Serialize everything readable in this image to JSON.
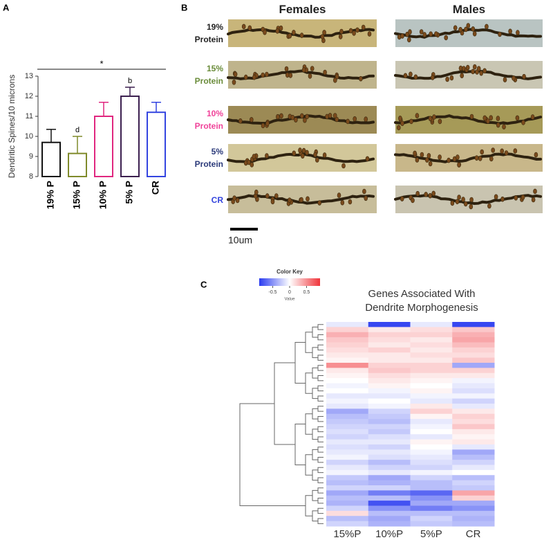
{
  "panel_labels": [
    "A",
    "B",
    "C"
  ],
  "chart_data": [
    {
      "type": "bar",
      "ylabel": "Dendritic Spines/10 microns",
      "categories": [
        "19% P",
        "15% P",
        "10% P",
        "5% P",
        "CR"
      ],
      "values": [
        9.7,
        9.15,
        11.0,
        12.0,
        11.2
      ],
      "errors": [
        0.65,
        0.85,
        0.7,
        0.45,
        0.5
      ],
      "colors": [
        "#111111",
        "#7f8a2a",
        "#e0267f",
        "#3b1f4f",
        "#3344e0"
      ],
      "ylim": [
        8,
        13
      ],
      "yticks": [
        8,
        9,
        10,
        11,
        12,
        13
      ],
      "annotations": [
        {
          "text": "d",
          "category": "15% P"
        },
        {
          "text": "b",
          "category": "5% P"
        }
      ],
      "significance": {
        "text": "*",
        "from": "19% P",
        "to": "CR"
      }
    },
    {
      "type": "heatmap",
      "title": "Genes Associated With Dendrite Morphogenesis",
      "columns": [
        "15%P",
        "10%P",
        "5%P",
        "CR"
      ],
      "values": [
        [
          -0.1,
          -0.85,
          -0.1,
          -0.85
        ],
        [
          0.2,
          0.1,
          0.15,
          0.25
        ],
        [
          0.35,
          0.2,
          0.2,
          0.35
        ],
        [
          0.25,
          0.15,
          0.1,
          0.4
        ],
        [
          0.2,
          0.1,
          0.15,
          0.3
        ],
        [
          0.15,
          0.2,
          0.1,
          0.2
        ],
        [
          0.1,
          0.1,
          0.15,
          0.15
        ],
        [
          0.05,
          0.1,
          0.1,
          0.25
        ],
        [
          0.5,
          0.2,
          0.2,
          -0.4
        ],
        [
          0.1,
          0.25,
          0.2,
          0.2
        ],
        [
          0.05,
          0.15,
          0.1,
          0.1
        ],
        [
          0.0,
          0.1,
          0.05,
          -0.05
        ],
        [
          -0.05,
          0.05,
          0.0,
          -0.1
        ],
        [
          0.0,
          -0.05,
          0.05,
          -0.15
        ],
        [
          -0.1,
          -0.1,
          -0.05,
          -0.05
        ],
        [
          -0.05,
          0.0,
          -0.1,
          -0.2
        ],
        [
          -0.1,
          -0.05,
          0.1,
          -0.1
        ],
        [
          -0.4,
          -0.2,
          0.2,
          0.1
        ],
        [
          -0.3,
          -0.25,
          0.05,
          0.2
        ],
        [
          -0.25,
          -0.3,
          -0.1,
          0.15
        ],
        [
          -0.2,
          -0.2,
          -0.05,
          0.25
        ],
        [
          -0.15,
          -0.25,
          0.0,
          0.1
        ],
        [
          -0.2,
          -0.15,
          -0.1,
          0.05
        ],
        [
          -0.1,
          -0.1,
          0.05,
          0.1
        ],
        [
          -0.15,
          -0.2,
          0.0,
          -0.1
        ],
        [
          -0.1,
          -0.1,
          -0.05,
          -0.4
        ],
        [
          -0.05,
          -0.15,
          -0.1,
          -0.3
        ],
        [
          -0.2,
          -0.3,
          -0.15,
          -0.2
        ],
        [
          -0.1,
          -0.2,
          -0.2,
          -0.1
        ],
        [
          -0.05,
          -0.1,
          -0.05,
          0.0
        ],
        [
          -0.25,
          -0.4,
          -0.2,
          -0.3
        ],
        [
          -0.3,
          -0.35,
          -0.3,
          -0.2
        ],
        [
          -0.2,
          -0.2,
          -0.3,
          -0.25
        ],
        [
          -0.4,
          -0.6,
          -0.7,
          0.4
        ],
        [
          -0.3,
          -0.3,
          -0.5,
          0.2
        ],
        [
          -0.35,
          -0.8,
          -0.4,
          -0.4
        ],
        [
          -0.2,
          -0.5,
          -0.6,
          -0.5
        ],
        [
          0.15,
          -0.3,
          -0.3,
          -0.3
        ],
        [
          -0.3,
          -0.4,
          -0.2,
          -0.35
        ],
        [
          -0.2,
          -0.35,
          -0.25,
          -0.3
        ]
      ],
      "colormap": {
        "low": "#2b3cf0",
        "mid": "#ffffff",
        "high": "#f0353b"
      },
      "clim": [
        -0.9,
        0.9
      ],
      "color_key": {
        "title": "Color Key",
        "label": "Value",
        "ticks": [
          -0.5,
          0,
          0.5
        ]
      }
    }
  ],
  "micrographs": {
    "columns": [
      "Females",
      "Males"
    ],
    "rows": [
      {
        "label": "19% Protein",
        "color": "#222222"
      },
      {
        "label": "15% Protein",
        "color": "#6a8c3a"
      },
      {
        "label": "10% Protein",
        "color": "#f0439a"
      },
      {
        "label": "5% Protein",
        "color": "#2b3a7a"
      },
      {
        "label": "CR",
        "color": "#3344dd"
      }
    ],
    "scale_bar": "10um"
  }
}
